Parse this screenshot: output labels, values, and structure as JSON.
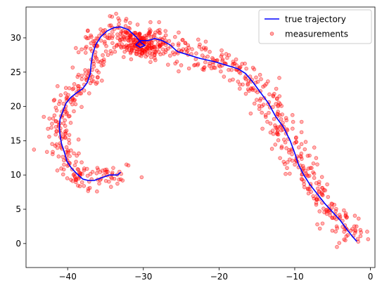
{
  "chart_data": {
    "type": "scatter",
    "title": "",
    "xlabel": "",
    "ylabel": "",
    "xlim": [
      -45.5,
      0.6
    ],
    "ylim": [
      -3.5,
      34.5
    ],
    "xticks": [
      -40,
      -30,
      -20,
      -10,
      0
    ],
    "yticks": [
      0,
      5,
      10,
      15,
      20,
      25,
      30
    ],
    "grid": false,
    "legend_position": "top-right",
    "series": [
      {
        "name": "true trajectory",
        "kind": "line",
        "color": "#0000ff",
        "points": [
          [
            -33.0,
            10.4
          ],
          [
            -33.4,
            10.0
          ],
          [
            -34.5,
            10.0
          ],
          [
            -35.5,
            9.6
          ],
          [
            -36.5,
            9.2
          ],
          [
            -37.3,
            9.2
          ],
          [
            -38.0,
            9.4
          ],
          [
            -38.8,
            10.2
          ],
          [
            -39.5,
            11.0
          ],
          [
            -40.1,
            12.0
          ],
          [
            -40.4,
            13.2
          ],
          [
            -40.8,
            14.5
          ],
          [
            -41.0,
            15.8
          ],
          [
            -41.1,
            17.0
          ],
          [
            -41.0,
            18.2
          ],
          [
            -40.6,
            19.4
          ],
          [
            -40.2,
            20.5
          ],
          [
            -39.6,
            21.3
          ],
          [
            -38.8,
            22.0
          ],
          [
            -38.0,
            22.6
          ],
          [
            -37.4,
            23.5
          ],
          [
            -37.0,
            24.8
          ],
          [
            -36.9,
            26.2
          ],
          [
            -36.7,
            27.6
          ],
          [
            -36.3,
            29.0
          ],
          [
            -35.6,
            30.2
          ],
          [
            -34.8,
            31.0
          ],
          [
            -33.9,
            31.5
          ],
          [
            -33.0,
            31.6
          ],
          [
            -32.0,
            31.2
          ],
          [
            -31.0,
            30.2
          ],
          [
            -30.3,
            29.3
          ],
          [
            -29.8,
            28.9
          ],
          [
            -30.4,
            28.6
          ],
          [
            -31.0,
            29.0
          ],
          [
            -30.4,
            29.6
          ],
          [
            -29.4,
            29.6
          ],
          [
            -28.5,
            29.9
          ],
          [
            -27.5,
            29.6
          ],
          [
            -26.5,
            29.0
          ],
          [
            -25.5,
            28.0
          ],
          [
            -24.0,
            27.5
          ],
          [
            -22.5,
            27.0
          ],
          [
            -20.5,
            26.5
          ],
          [
            -19.0,
            26.0
          ],
          [
            -17.5,
            25.5
          ],
          [
            -16.5,
            24.8
          ],
          [
            -15.5,
            23.5
          ],
          [
            -14.5,
            22.0
          ],
          [
            -13.5,
            20.5
          ],
          [
            -12.5,
            18.5
          ],
          [
            -11.5,
            17.0
          ],
          [
            -10.6,
            15.0
          ],
          [
            -10.0,
            13.2
          ],
          [
            -9.5,
            11.5
          ],
          [
            -8.8,
            10.0
          ],
          [
            -8.0,
            8.6
          ],
          [
            -7.0,
            7.2
          ],
          [
            -6.0,
            5.8
          ],
          [
            -5.0,
            4.6
          ],
          [
            -4.0,
            3.4
          ],
          [
            -3.2,
            2.2
          ],
          [
            -2.5,
            1.2
          ],
          [
            -1.8,
            0.3
          ]
        ]
      },
      {
        "name": "measurements",
        "kind": "scatter",
        "color": "#ff0000",
        "n_points": 800,
        "sigma": 1.0,
        "extra_cluster": {
          "center": [
            -30.5,
            29.0
          ],
          "n_points": 140,
          "sigma": 1.2
        }
      }
    ]
  }
}
